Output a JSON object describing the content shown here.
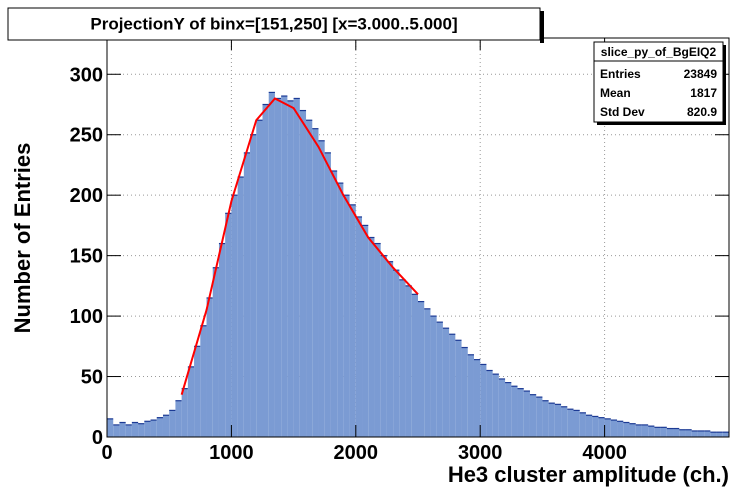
{
  "chart_data": {
    "type": "histogram",
    "title": "ProjectionY of binx=[151,250] [x=3.000..5.000]",
    "x_label": "He3 cluster amplitude (ch.)",
    "y_label": "Number of Entries",
    "bins": [
      0,
      50,
      100,
      150,
      200,
      250,
      300,
      350,
      400,
      450,
      500,
      550,
      600,
      650,
      700,
      750,
      800,
      850,
      900,
      950,
      1000,
      1050,
      1100,
      1150,
      1200,
      1250,
      1300,
      1350,
      1400,
      1450,
      1500,
      1550,
      1600,
      1650,
      1700,
      1750,
      1800,
      1850,
      1900,
      1950,
      2000,
      2050,
      2100,
      2150,
      2200,
      2250,
      2300,
      2350,
      2400,
      2450,
      2500,
      2550,
      2600,
      2650,
      2700,
      2750,
      2800,
      2850,
      2900,
      2950,
      3000,
      3050,
      3100,
      3150,
      3200,
      3250,
      3300,
      3350,
      3400,
      3450,
      3500,
      3550,
      3600,
      3650,
      3700,
      3750,
      3800,
      3850,
      3900,
      3950,
      4000,
      4050,
      4100,
      4150,
      4200,
      4250,
      4300,
      4350,
      4400,
      4450,
      4500,
      4550,
      4600,
      4650,
      4700,
      4750,
      4800,
      4850,
      4900,
      4950,
      5000
    ],
    "values": [
      15,
      10,
      12,
      10,
      12,
      11,
      13,
      14,
      16,
      18,
      22,
      30,
      40,
      58,
      75,
      92,
      115,
      140,
      160,
      185,
      200,
      215,
      235,
      250,
      262,
      275,
      285,
      280,
      282,
      278,
      280,
      270,
      262,
      255,
      245,
      235,
      220,
      210,
      200,
      192,
      182,
      175,
      165,
      160,
      150,
      145,
      138,
      130,
      125,
      118,
      112,
      106,
      100,
      95,
      90,
      85,
      80,
      74,
      68,
      64,
      60,
      55,
      52,
      48,
      45,
      42,
      40,
      38,
      35,
      33,
      30,
      28,
      27,
      25,
      23,
      22,
      20,
      18,
      17,
      16,
      15,
      14,
      13,
      12,
      11,
      10,
      10,
      9,
      8,
      8,
      7,
      7,
      6,
      6,
      5,
      5,
      5,
      4,
      4,
      4
    ],
    "color": "#7b9bd3",
    "edge_color": "#1c3a94",
    "fit": {
      "color": "#ff0000",
      "x": [
        600,
        800,
        1000,
        1200,
        1350,
        1500,
        1700,
        1900,
        2100,
        2300,
        2500
      ],
      "y": [
        35,
        105,
        195,
        262,
        280,
        272,
        240,
        200,
        165,
        140,
        118
      ]
    },
    "xlim": [
      0,
      5000
    ],
    "ylim": [
      0,
      330
    ],
    "xticks": [
      0,
      1000,
      2000,
      3000,
      4000
    ],
    "yticks": [
      0,
      50,
      100,
      150,
      200,
      250,
      300
    ],
    "grid": true,
    "stats": {
      "title": "slice_py_of_BgEIQ2",
      "rows": [
        [
          "Entries",
          23849
        ],
        [
          "Mean",
          1817
        ],
        [
          "Std Dev",
          820.9
        ]
      ]
    }
  }
}
